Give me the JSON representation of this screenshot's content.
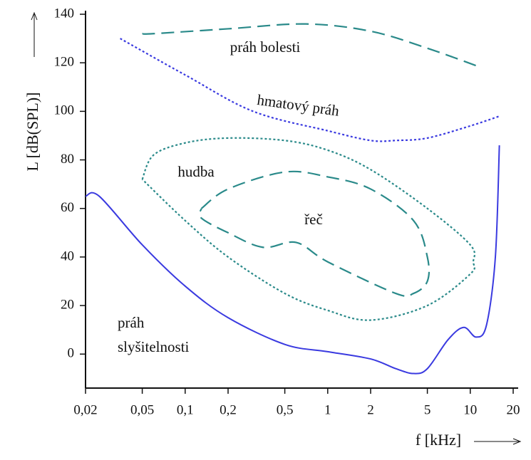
{
  "chart_data": {
    "type": "line",
    "xlabel": "f [kHz]",
    "ylabel": "L [dB(SPL)]",
    "xscale": "log",
    "xlim": [
      0.02,
      20
    ],
    "ylim": [
      -14,
      140
    ],
    "xticks": [
      {
        "value": 0.02,
        "label": "0,02"
      },
      {
        "value": 0.05,
        "label": "0,05"
      },
      {
        "value": 0.1,
        "label": "0,1"
      },
      {
        "value": 0.2,
        "label": "0,2"
      },
      {
        "value": 0.5,
        "label": "0,5"
      },
      1,
      2,
      5,
      10,
      20
    ],
    "yticks": [
      0,
      20,
      40,
      60,
      80,
      100,
      120,
      140
    ],
    "series": [
      {
        "name": "práh bolesti",
        "color": "#2a8a8a",
        "style": "dashed",
        "x": [
          0.05,
          0.06,
          0.2,
          0.7,
          2,
          5,
          12
        ],
        "values": [
          132,
          132,
          134,
          136,
          133,
          126,
          118
        ]
      },
      {
        "name": "hmatový práh",
        "color": "#3a3ae0",
        "style": "dotted",
        "x": [
          0.035,
          0.1,
          0.3,
          1,
          2,
          3,
          5,
          10,
          16
        ],
        "values": [
          130,
          115,
          100,
          92,
          88,
          88,
          89,
          94,
          98
        ]
      },
      {
        "name": "hudba",
        "color": "#2a8a8a",
        "style": "dotted",
        "x": [
          0.05,
          0.06,
          0.1,
          0.2,
          0.5,
          1,
          2,
          5,
          10,
          10.5,
          10,
          5,
          2,
          1,
          0.5,
          0.2,
          0.1,
          0.05
        ],
        "values": [
          72,
          82,
          87,
          89,
          88,
          84,
          76,
          60,
          45,
          38,
          33,
          20,
          14,
          18,
          25,
          40,
          55,
          72
        ]
      },
      {
        "name": "řeč",
        "color": "#2a8a8a",
        "style": "dashed",
        "x": [
          0.13,
          0.2,
          0.5,
          1,
          2,
          4,
          5,
          5,
          4,
          3,
          1,
          0.6,
          0.35,
          0.2,
          0.13,
          0.13
        ],
        "values": [
          60,
          68,
          75,
          73,
          68,
          55,
          40,
          30,
          25,
          25,
          38,
          46,
          44,
          50,
          56,
          60
        ]
      },
      {
        "name": "práh slyšitelnosti",
        "color": "#3a3ae0",
        "style": "solid",
        "x": [
          0.02,
          0.025,
          0.05,
          0.1,
          0.2,
          0.5,
          1,
          2,
          3,
          4,
          5,
          7,
          9,
          11,
          13,
          15,
          16
        ],
        "values": [
          65,
          65,
          45,
          28,
          15,
          4,
          1,
          -2,
          -6,
          -8,
          -6,
          6,
          11,
          7,
          12,
          40,
          86
        ]
      }
    ]
  }
}
